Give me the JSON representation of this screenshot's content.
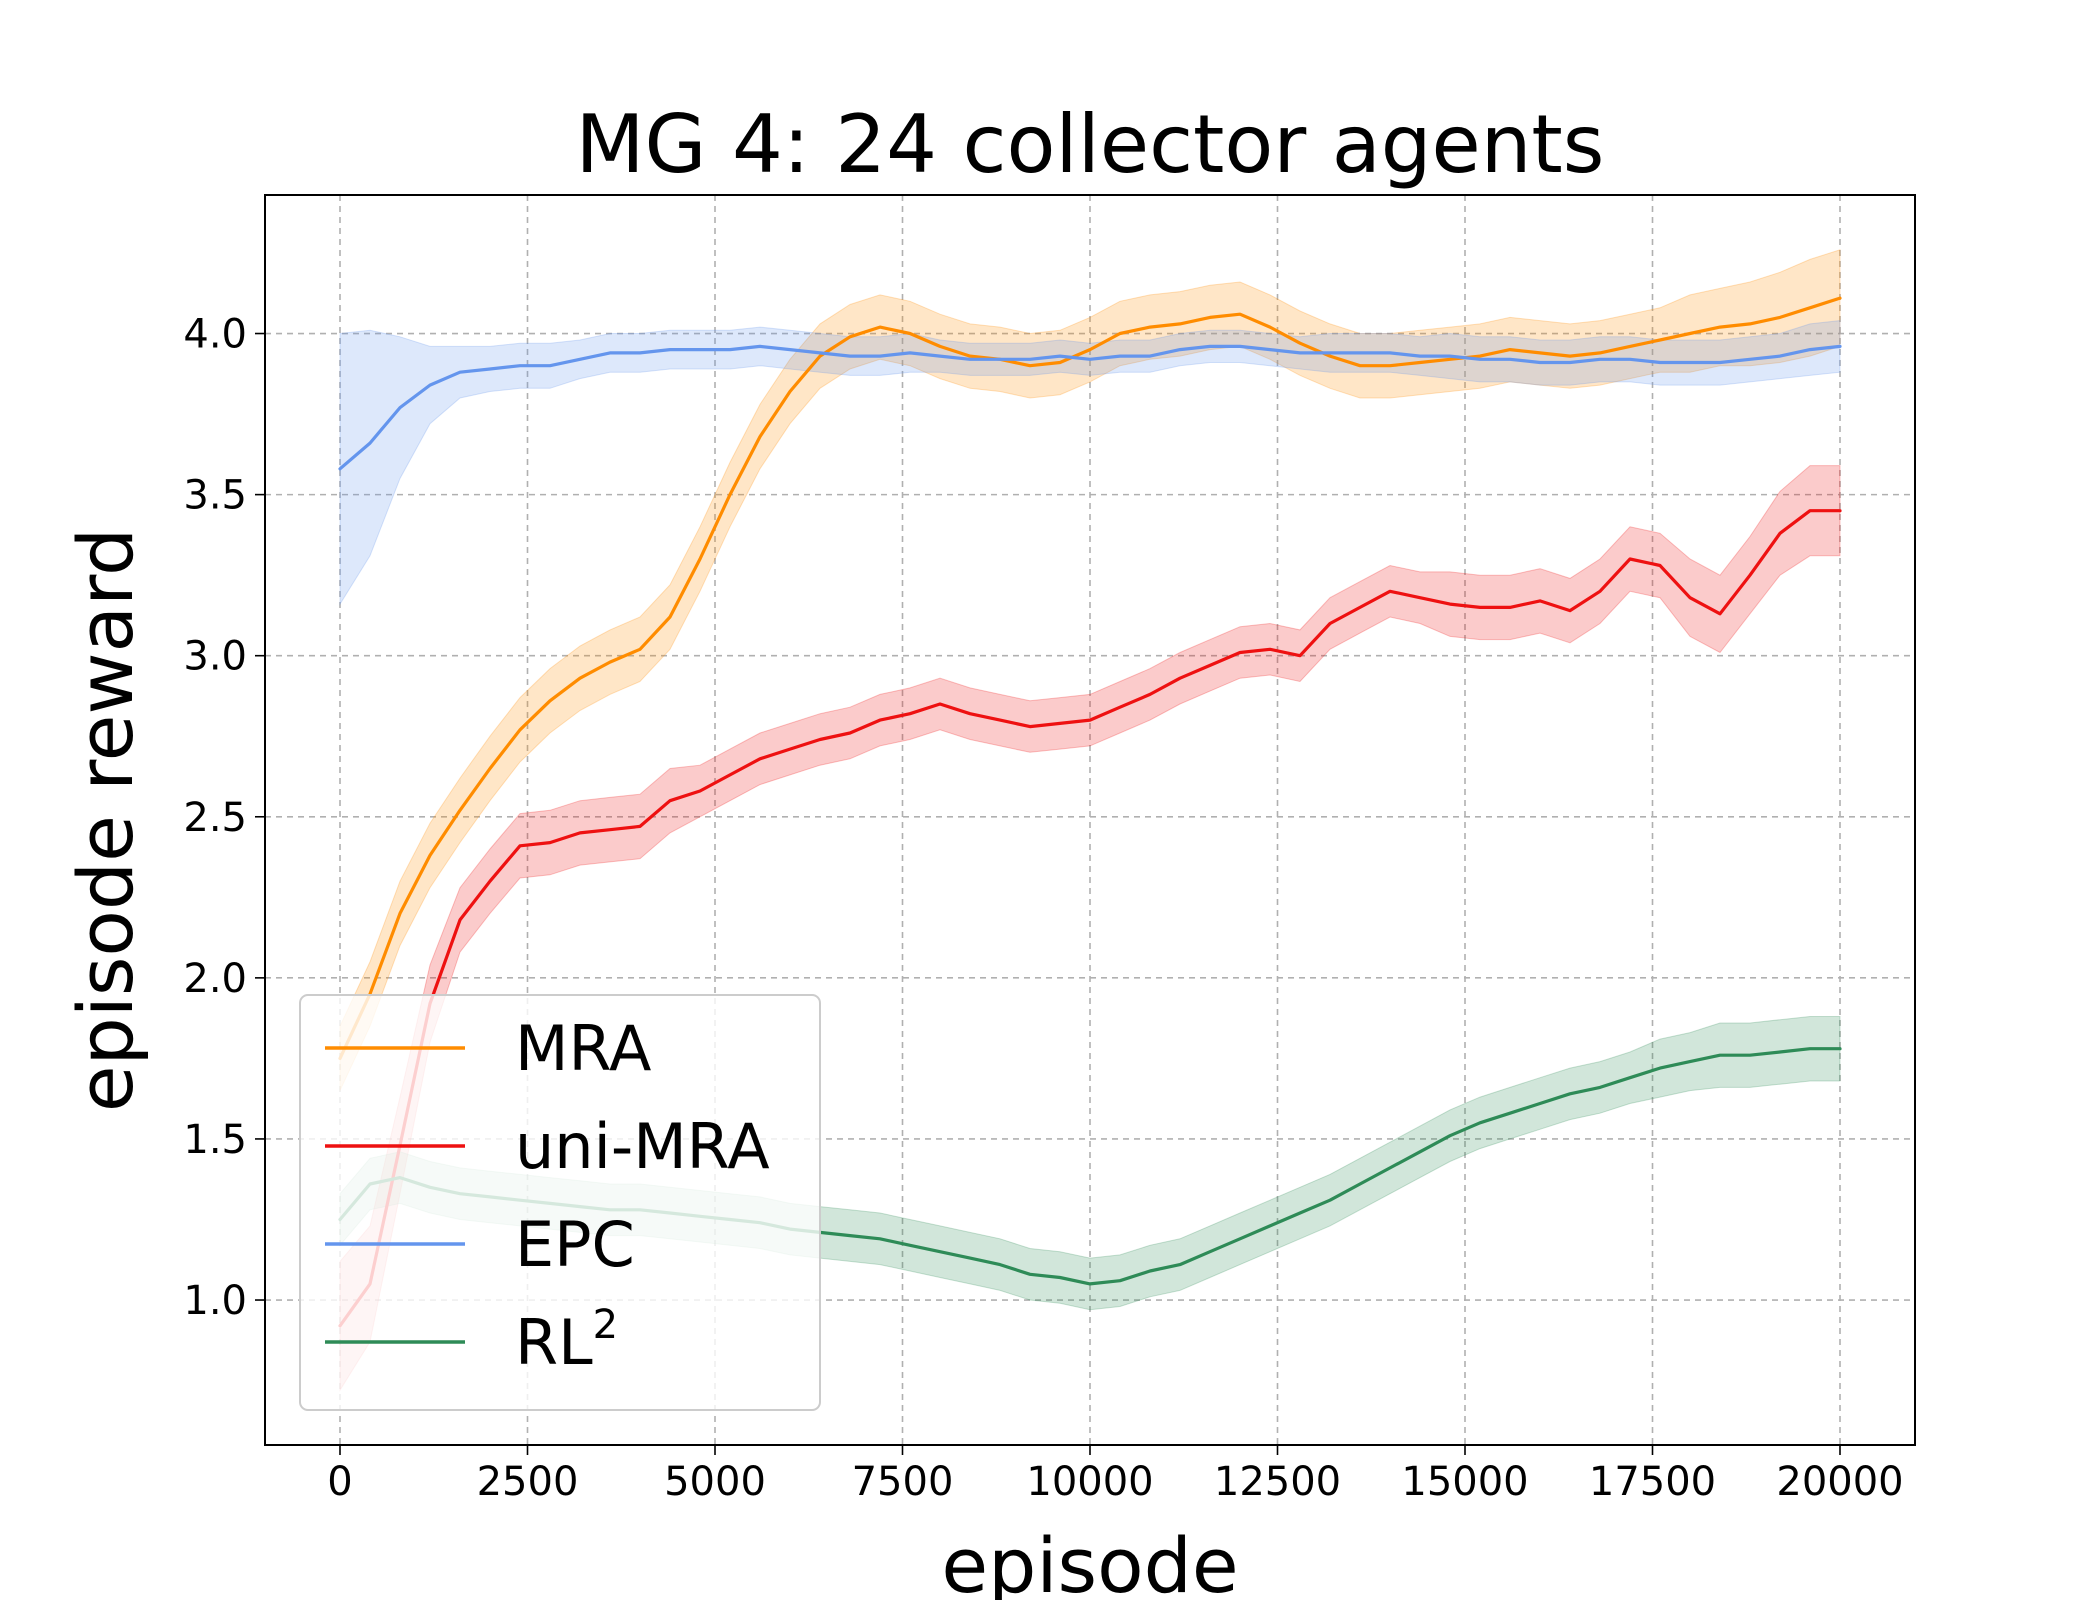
{
  "chart_data": {
    "type": "line",
    "title": "MG 4: 24 collector agents",
    "xlabel": "episode",
    "ylabel": "episode reward",
    "xlim": [
      -1000,
      21000
    ],
    "ylim": [
      0.55,
      4.43
    ],
    "xticks": [
      0,
      2500,
      5000,
      7500,
      10000,
      12500,
      15000,
      17500,
      20000
    ],
    "xtick_labels": [
      "0",
      "2500",
      "5000",
      "7500",
      "10000",
      "12500",
      "15000",
      "17500",
      "20000"
    ],
    "yticks": [
      1.0,
      1.5,
      2.0,
      2.5,
      3.0,
      3.5,
      4.0
    ],
    "ytick_labels": [
      "1.0",
      "1.5",
      "2.0",
      "2.5",
      "3.0",
      "3.5",
      "4.0"
    ],
    "grid": true,
    "legend_position": "lower-left",
    "series": [
      {
        "name": "MRA",
        "label": "MRA",
        "color": "#ff8c00",
        "x": [
          0,
          400,
          800,
          1200,
          1600,
          2000,
          2400,
          2800,
          3200,
          3600,
          4000,
          4400,
          4800,
          5200,
          5600,
          6000,
          6400,
          6800,
          7200,
          7600,
          8000,
          8400,
          8800,
          9200,
          9600,
          10000,
          10400,
          10800,
          11200,
          11600,
          12000,
          12400,
          12800,
          13200,
          13600,
          14000,
          14400,
          14800,
          15200,
          15600,
          16000,
          16400,
          16800,
          17200,
          17600,
          18000,
          18400,
          18800,
          19200,
          19600,
          20000
        ],
        "y": [
          1.75,
          1.95,
          2.2,
          2.38,
          2.52,
          2.65,
          2.77,
          2.86,
          2.93,
          2.98,
          3.02,
          3.12,
          3.3,
          3.5,
          3.68,
          3.82,
          3.93,
          3.99,
          4.02,
          4.0,
          3.96,
          3.93,
          3.92,
          3.9,
          3.91,
          3.95,
          4.0,
          4.02,
          4.03,
          4.05,
          4.06,
          4.02,
          3.97,
          3.93,
          3.9,
          3.9,
          3.91,
          3.92,
          3.93,
          3.95,
          3.94,
          3.93,
          3.94,
          3.96,
          3.98,
          4.0,
          4.02,
          4.03,
          4.05,
          4.08,
          4.11
        ],
        "band": [
          0.1,
          0.1,
          0.1,
          0.1,
          0.1,
          0.1,
          0.1,
          0.1,
          0.1,
          0.1,
          0.1,
          0.1,
          0.1,
          0.1,
          0.1,
          0.1,
          0.1,
          0.1,
          0.1,
          0.1,
          0.1,
          0.1,
          0.1,
          0.1,
          0.1,
          0.1,
          0.1,
          0.1,
          0.1,
          0.1,
          0.1,
          0.1,
          0.1,
          0.1,
          0.1,
          0.1,
          0.1,
          0.1,
          0.1,
          0.1,
          0.1,
          0.1,
          0.1,
          0.1,
          0.1,
          0.12,
          0.12,
          0.13,
          0.14,
          0.15,
          0.15
        ]
      },
      {
        "name": "uni-MRA",
        "label": "uni-MRA",
        "color": "#ee1111",
        "x": [
          0,
          400,
          800,
          1200,
          1600,
          2000,
          2400,
          2800,
          3200,
          3600,
          4000,
          4400,
          4800,
          5200,
          5600,
          6000,
          6400,
          6800,
          7200,
          7600,
          8000,
          8400,
          8800,
          9200,
          9600,
          10000,
          10400,
          10800,
          11200,
          11600,
          12000,
          12400,
          12800,
          13200,
          13600,
          14000,
          14400,
          14800,
          15200,
          15600,
          16000,
          16400,
          16800,
          17200,
          17600,
          18000,
          18400,
          18800,
          19200,
          19600,
          20000
        ],
        "y": [
          0.92,
          1.05,
          1.48,
          1.92,
          2.18,
          2.3,
          2.41,
          2.42,
          2.45,
          2.46,
          2.47,
          2.55,
          2.58,
          2.63,
          2.68,
          2.71,
          2.74,
          2.76,
          2.8,
          2.82,
          2.85,
          2.82,
          2.8,
          2.78,
          2.79,
          2.8,
          2.84,
          2.88,
          2.93,
          2.97,
          3.01,
          3.02,
          3.0,
          3.1,
          3.15,
          3.2,
          3.18,
          3.16,
          3.15,
          3.15,
          3.17,
          3.14,
          3.2,
          3.3,
          3.28,
          3.18,
          3.13,
          3.25,
          3.38,
          3.45,
          3.45
        ],
        "band": [
          0.2,
          0.18,
          0.15,
          0.12,
          0.1,
          0.1,
          0.1,
          0.1,
          0.1,
          0.1,
          0.1,
          0.1,
          0.08,
          0.08,
          0.08,
          0.08,
          0.08,
          0.08,
          0.08,
          0.08,
          0.08,
          0.08,
          0.08,
          0.08,
          0.08,
          0.08,
          0.08,
          0.08,
          0.08,
          0.08,
          0.08,
          0.08,
          0.08,
          0.08,
          0.08,
          0.08,
          0.08,
          0.1,
          0.1,
          0.1,
          0.1,
          0.1,
          0.1,
          0.1,
          0.1,
          0.12,
          0.12,
          0.12,
          0.13,
          0.14,
          0.14
        ]
      },
      {
        "name": "EPC",
        "label": "EPC",
        "color": "#6495ed",
        "x": [
          0,
          400,
          800,
          1200,
          1600,
          2000,
          2400,
          2800,
          3200,
          3600,
          4000,
          4400,
          4800,
          5200,
          5600,
          6000,
          6400,
          6800,
          7200,
          7600,
          8000,
          8400,
          8800,
          9200,
          9600,
          10000,
          10400,
          10800,
          11200,
          11600,
          12000,
          12400,
          12800,
          13200,
          13600,
          14000,
          14400,
          14800,
          15200,
          15600,
          16000,
          16400,
          16800,
          17200,
          17600,
          18000,
          18400,
          18800,
          19200,
          19600,
          20000
        ],
        "y": [
          3.58,
          3.66,
          3.77,
          3.84,
          3.88,
          3.89,
          3.9,
          3.9,
          3.92,
          3.94,
          3.94,
          3.95,
          3.95,
          3.95,
          3.96,
          3.95,
          3.94,
          3.93,
          3.93,
          3.94,
          3.93,
          3.92,
          3.92,
          3.92,
          3.93,
          3.92,
          3.93,
          3.93,
          3.95,
          3.96,
          3.96,
          3.95,
          3.94,
          3.94,
          3.94,
          3.94,
          3.93,
          3.93,
          3.92,
          3.92,
          3.91,
          3.91,
          3.92,
          3.92,
          3.91,
          3.91,
          3.91,
          3.92,
          3.93,
          3.95,
          3.96
        ],
        "band": [
          0.42,
          0.35,
          0.22,
          0.12,
          0.08,
          0.07,
          0.07,
          0.07,
          0.06,
          0.06,
          0.06,
          0.06,
          0.06,
          0.06,
          0.06,
          0.06,
          0.06,
          0.06,
          0.06,
          0.06,
          0.05,
          0.05,
          0.05,
          0.05,
          0.05,
          0.05,
          0.05,
          0.05,
          0.05,
          0.05,
          0.05,
          0.05,
          0.05,
          0.06,
          0.06,
          0.06,
          0.06,
          0.07,
          0.07,
          0.07,
          0.07,
          0.07,
          0.07,
          0.07,
          0.07,
          0.07,
          0.07,
          0.07,
          0.07,
          0.08,
          0.08
        ]
      },
      {
        "name": "RL2",
        "label": "RL",
        "label_superscript": "2",
        "color": "#2e8b57",
        "x": [
          0,
          400,
          800,
          1200,
          1600,
          2000,
          2400,
          2800,
          3200,
          3600,
          4000,
          4400,
          4800,
          5200,
          5600,
          6000,
          6400,
          6800,
          7200,
          7600,
          8000,
          8400,
          8800,
          9200,
          9600,
          10000,
          10400,
          10800,
          11200,
          11600,
          12000,
          12400,
          12800,
          13200,
          13600,
          14000,
          14400,
          14800,
          15200,
          15600,
          16000,
          16400,
          16800,
          17200,
          17600,
          18000,
          18400,
          18800,
          19200,
          19600,
          20000
        ],
        "y": [
          1.25,
          1.36,
          1.38,
          1.35,
          1.33,
          1.32,
          1.31,
          1.3,
          1.29,
          1.28,
          1.28,
          1.27,
          1.26,
          1.25,
          1.24,
          1.22,
          1.21,
          1.2,
          1.19,
          1.17,
          1.15,
          1.13,
          1.11,
          1.08,
          1.07,
          1.05,
          1.06,
          1.09,
          1.11,
          1.15,
          1.19,
          1.23,
          1.27,
          1.31,
          1.36,
          1.41,
          1.46,
          1.51,
          1.55,
          1.58,
          1.61,
          1.64,
          1.66,
          1.69,
          1.72,
          1.74,
          1.76,
          1.76,
          1.77,
          1.78,
          1.78
        ],
        "band": [
          0.08,
          0.08,
          0.08,
          0.08,
          0.08,
          0.08,
          0.08,
          0.08,
          0.08,
          0.08,
          0.08,
          0.08,
          0.08,
          0.08,
          0.08,
          0.08,
          0.08,
          0.08,
          0.08,
          0.08,
          0.08,
          0.08,
          0.08,
          0.08,
          0.08,
          0.08,
          0.08,
          0.08,
          0.08,
          0.08,
          0.08,
          0.08,
          0.08,
          0.08,
          0.08,
          0.08,
          0.08,
          0.08,
          0.08,
          0.08,
          0.08,
          0.08,
          0.08,
          0.08,
          0.09,
          0.09,
          0.1,
          0.1,
          0.1,
          0.1,
          0.1
        ]
      }
    ]
  }
}
